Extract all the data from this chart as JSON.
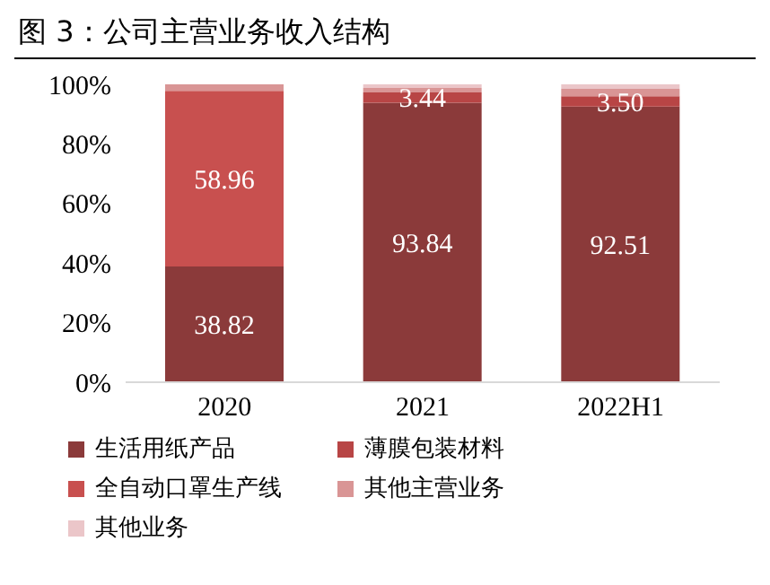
{
  "chart_data": {
    "type": "bar",
    "title": "图 3：公司主营业务收入结构",
    "categories": [
      "2020",
      "2021",
      "2022H1"
    ],
    "stacked": true,
    "ylim": [
      0,
      100
    ],
    "yticks": [
      {
        "value": 0,
        "label": "0%"
      },
      {
        "value": 20,
        "label": "20%"
      },
      {
        "value": 40,
        "label": "40%"
      },
      {
        "value": 60,
        "label": "60%"
      },
      {
        "value": 80,
        "label": "80%"
      },
      {
        "value": 100,
        "label": "100%"
      }
    ],
    "grid": false,
    "legend": "bottom",
    "series": [
      {
        "name": "生活用纸产品",
        "color": "#8b3a3a",
        "values": [
          38.82,
          93.84,
          92.51
        ],
        "value_labels": [
          "38.82",
          "93.84",
          "92.51"
        ]
      },
      {
        "name": "薄膜包装材料",
        "color": "#b84545",
        "values": [
          null,
          3.44,
          3.5
        ],
        "value_labels": [
          null,
          "3.44",
          "3.50"
        ]
      },
      {
        "name": "全自动口罩生产线",
        "color": "#c8504f",
        "values": [
          58.96,
          null,
          null
        ],
        "value_labels": [
          "58.96",
          null,
          null
        ]
      },
      {
        "name": "其他主营业务",
        "color": "#d99595",
        "values": [
          2.2,
          1.5,
          2.5
        ]
      },
      {
        "name": "其他业务",
        "color": "#ebc6c9",
        "values": [
          null,
          1.2,
          1.5
        ]
      }
    ]
  }
}
